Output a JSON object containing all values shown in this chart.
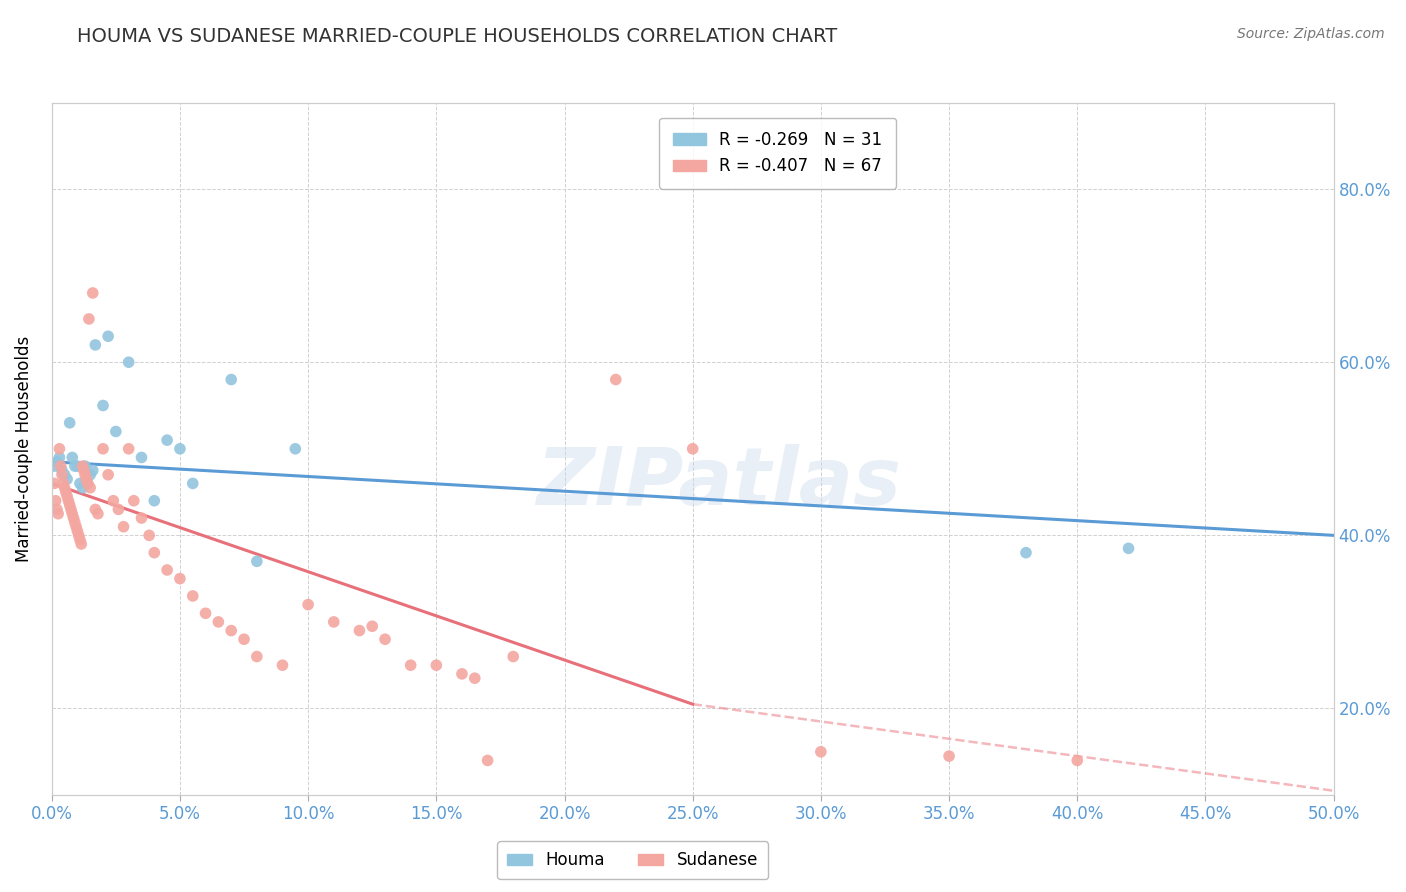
{
  "title": "HOUMA VS SUDANESE MARRIED-COUPLE HOUSEHOLDS CORRELATION CHART",
  "source": "Source: ZipAtlas.com",
  "ylabel": "Married-couple Households",
  "xlim": [
    0.0,
    50.0
  ],
  "ylim": [
    10.0,
    90.0
  ],
  "xticks": [
    0.0,
    5.0,
    10.0,
    15.0,
    20.0,
    25.0,
    30.0,
    35.0,
    40.0,
    45.0,
    50.0
  ],
  "yticks": [
    20.0,
    40.0,
    60.0,
    80.0
  ],
  "houma_legend": "R = -0.269   N = 31",
  "sudanese_legend": "R = -0.407   N = 67",
  "houma_color": "#92c5de",
  "sudanese_color": "#f4a6a0",
  "houma_line_color": "#5b9bd5",
  "sudanese_line_color": "#e8707a",
  "grid_color": "#cccccc",
  "axis_label_color": "#5b9bd5",
  "houma_points": [
    [
      0.1,
      48.0
    ],
    [
      0.2,
      48.5
    ],
    [
      0.3,
      49.0
    ],
    [
      0.4,
      47.5
    ],
    [
      0.5,
      47.0
    ],
    [
      0.6,
      46.5
    ],
    [
      0.7,
      53.0
    ],
    [
      0.8,
      49.0
    ],
    [
      0.9,
      48.0
    ],
    [
      1.0,
      48.0
    ],
    [
      1.1,
      46.0
    ],
    [
      1.2,
      45.5
    ],
    [
      1.3,
      48.0
    ],
    [
      1.4,
      46.0
    ],
    [
      1.5,
      47.0
    ],
    [
      1.6,
      47.5
    ],
    [
      1.7,
      62.0
    ],
    [
      2.0,
      55.0
    ],
    [
      2.2,
      63.0
    ],
    [
      2.5,
      52.0
    ],
    [
      3.0,
      60.0
    ],
    [
      3.5,
      49.0
    ],
    [
      4.0,
      44.0
    ],
    [
      4.5,
      51.0
    ],
    [
      5.0,
      50.0
    ],
    [
      5.5,
      46.0
    ],
    [
      7.0,
      58.0
    ],
    [
      8.0,
      37.0
    ],
    [
      9.5,
      50.0
    ],
    [
      38.0,
      38.0
    ],
    [
      42.0,
      38.5
    ]
  ],
  "sudanese_points": [
    [
      0.1,
      46.0
    ],
    [
      0.15,
      44.0
    ],
    [
      0.2,
      43.0
    ],
    [
      0.25,
      42.5
    ],
    [
      0.3,
      50.0
    ],
    [
      0.35,
      48.0
    ],
    [
      0.4,
      47.0
    ],
    [
      0.45,
      46.0
    ],
    [
      0.5,
      45.5
    ],
    [
      0.55,
      45.0
    ],
    [
      0.6,
      44.5
    ],
    [
      0.65,
      44.0
    ],
    [
      0.7,
      43.5
    ],
    [
      0.75,
      43.0
    ],
    [
      0.8,
      42.5
    ],
    [
      0.85,
      42.0
    ],
    [
      0.9,
      41.5
    ],
    [
      0.95,
      41.0
    ],
    [
      1.0,
      40.5
    ],
    [
      1.05,
      40.0
    ],
    [
      1.1,
      39.5
    ],
    [
      1.15,
      39.0
    ],
    [
      1.2,
      48.0
    ],
    [
      1.25,
      47.5
    ],
    [
      1.3,
      47.0
    ],
    [
      1.35,
      46.5
    ],
    [
      1.4,
      46.0
    ],
    [
      1.45,
      65.0
    ],
    [
      1.5,
      45.5
    ],
    [
      1.6,
      68.0
    ],
    [
      1.7,
      43.0
    ],
    [
      1.8,
      42.5
    ],
    [
      2.0,
      50.0
    ],
    [
      2.2,
      47.0
    ],
    [
      2.4,
      44.0
    ],
    [
      2.6,
      43.0
    ],
    [
      2.8,
      41.0
    ],
    [
      3.0,
      50.0
    ],
    [
      3.2,
      44.0
    ],
    [
      3.5,
      42.0
    ],
    [
      3.8,
      40.0
    ],
    [
      4.0,
      38.0
    ],
    [
      4.5,
      36.0
    ],
    [
      5.0,
      35.0
    ],
    [
      5.5,
      33.0
    ],
    [
      6.0,
      31.0
    ],
    [
      6.5,
      30.0
    ],
    [
      7.0,
      29.0
    ],
    [
      7.5,
      28.0
    ],
    [
      8.0,
      26.0
    ],
    [
      9.0,
      25.0
    ],
    [
      10.0,
      32.0
    ],
    [
      11.0,
      30.0
    ],
    [
      12.0,
      29.0
    ],
    [
      12.5,
      29.5
    ],
    [
      13.0,
      28.0
    ],
    [
      14.0,
      25.0
    ],
    [
      15.0,
      25.0
    ],
    [
      16.0,
      24.0
    ],
    [
      16.5,
      23.5
    ],
    [
      17.0,
      14.0
    ],
    [
      18.0,
      26.0
    ],
    [
      22.0,
      58.0
    ],
    [
      25.0,
      50.0
    ],
    [
      30.0,
      15.0
    ],
    [
      35.0,
      14.5
    ],
    [
      40.0,
      14.0
    ]
  ],
  "houma_trend": {
    "x_start": 0.0,
    "x_end": 50.0,
    "y_start": 48.5,
    "y_end": 40.0
  },
  "sudanese_trend": {
    "x_start": 0.0,
    "x_end": 25.0,
    "y_start": 46.0,
    "y_end": 20.5
  },
  "sudanese_trend_dashed": {
    "x_start": 25.0,
    "x_end": 50.0,
    "y_start": 20.5,
    "y_end": 10.5
  }
}
